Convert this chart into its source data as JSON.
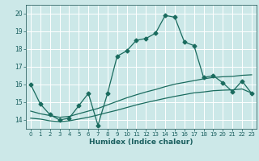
{
  "title": "",
  "xlabel": "Humidex (Indice chaleur)",
  "ylabel": "",
  "background_color": "#cce8e8",
  "grid_color": "#ffffff",
  "line_color": "#1a6b5e",
  "xlim": [
    -0.5,
    23.5
  ],
  "ylim": [
    13.5,
    20.5
  ],
  "yticks": [
    14,
    15,
    16,
    17,
    18,
    19,
    20
  ],
  "xticks": [
    0,
    1,
    2,
    3,
    4,
    5,
    6,
    7,
    8,
    9,
    10,
    11,
    12,
    13,
    14,
    15,
    16,
    17,
    18,
    19,
    20,
    21,
    22,
    23
  ],
  "series1_x": [
    0,
    1,
    2,
    3,
    4,
    5,
    6,
    7,
    8,
    9,
    10,
    11,
    12,
    13,
    14,
    15,
    16,
    17,
    18,
    19,
    20,
    21,
    22,
    23
  ],
  "series1_y": [
    16.0,
    14.9,
    14.3,
    14.0,
    14.1,
    14.8,
    15.5,
    13.7,
    15.5,
    17.6,
    17.9,
    18.5,
    18.6,
    18.9,
    19.9,
    19.8,
    18.4,
    18.2,
    16.4,
    16.5,
    16.1,
    15.6,
    16.2,
    15.5
  ],
  "series2_x": [
    0,
    1,
    2,
    3,
    4,
    5,
    6,
    7,
    8,
    9,
    10,
    11,
    12,
    13,
    14,
    15,
    16,
    17,
    18,
    19,
    20,
    21,
    22,
    23
  ],
  "series2_y": [
    14.5,
    14.35,
    14.25,
    14.15,
    14.2,
    14.35,
    14.5,
    14.65,
    14.85,
    15.05,
    15.25,
    15.42,
    15.58,
    15.72,
    15.88,
    16.02,
    16.12,
    16.22,
    16.32,
    16.4,
    16.44,
    16.46,
    16.52,
    16.55
  ],
  "series3_x": [
    0,
    1,
    2,
    3,
    4,
    5,
    6,
    7,
    8,
    9,
    10,
    11,
    12,
    13,
    14,
    15,
    16,
    17,
    18,
    19,
    20,
    21,
    22,
    23
  ],
  "series3_y": [
    14.1,
    14.05,
    13.95,
    13.9,
    13.95,
    14.05,
    14.15,
    14.28,
    14.42,
    14.55,
    14.7,
    14.85,
    14.98,
    15.1,
    15.22,
    15.33,
    15.43,
    15.53,
    15.58,
    15.65,
    15.68,
    15.7,
    15.75,
    15.52
  ]
}
